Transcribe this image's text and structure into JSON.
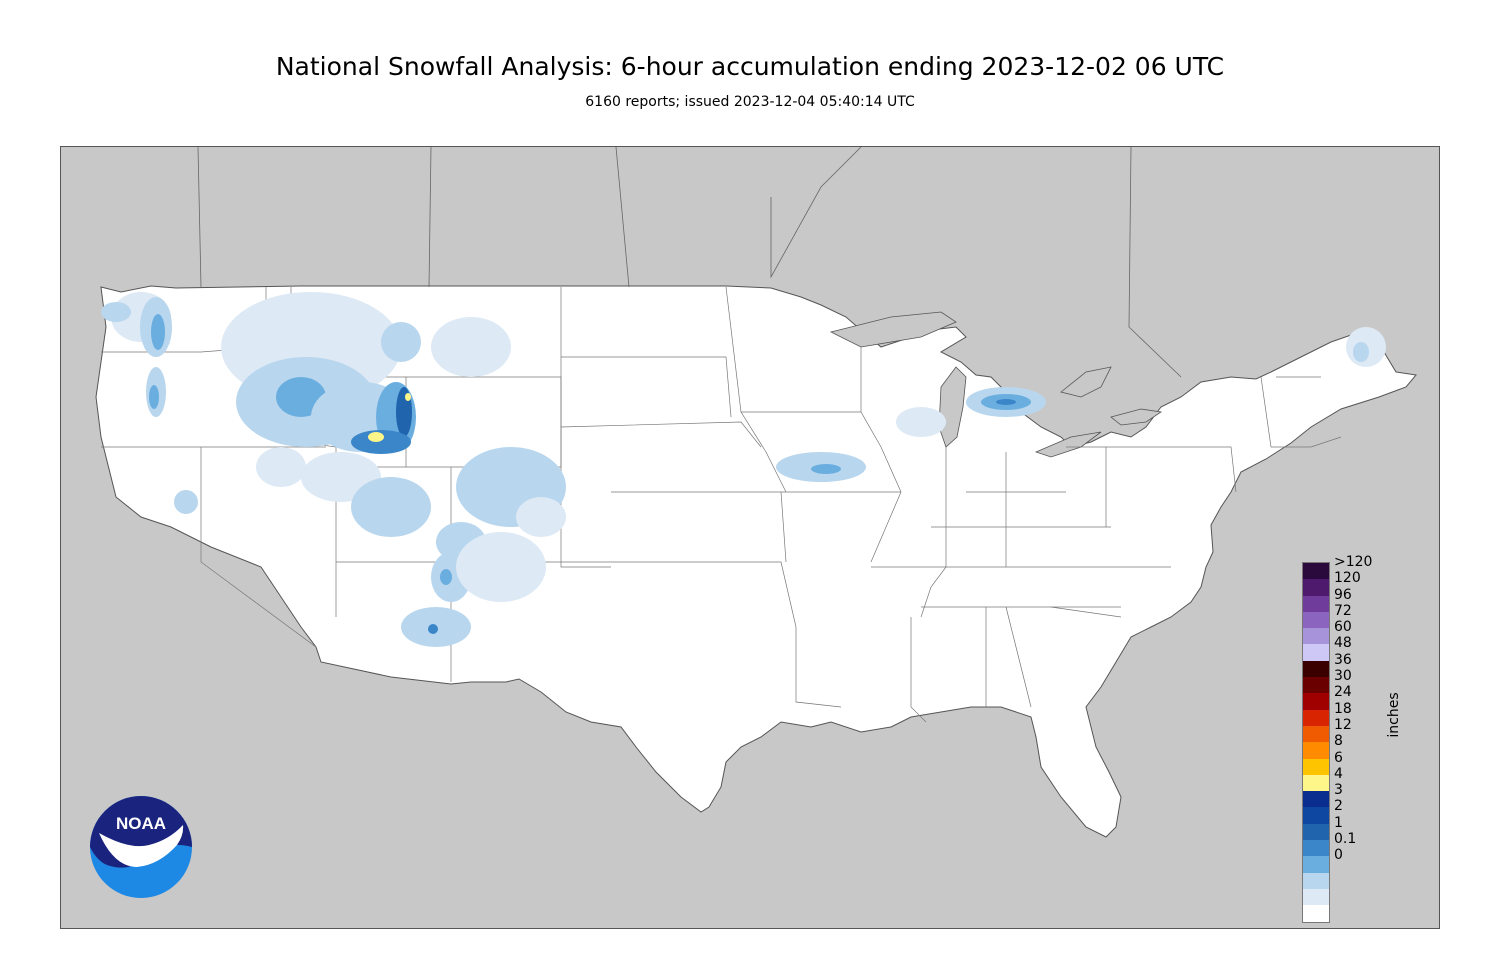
{
  "header": {
    "title": "National Snowfall Analysis: 6-hour accumulation ending 2023-12-02 06 UTC",
    "subtitle": "6160 reports; issued 2023-12-04 05:40:14 UTC"
  },
  "legend": {
    "units": "inches",
    "bins": [
      {
        "label": ">120",
        "color": "#2a0a3c"
      },
      {
        "label": "120",
        "color": "#4e1a6e"
      },
      {
        "label": "96",
        "color": "#6f3c9c"
      },
      {
        "label": "72",
        "color": "#8a64be"
      },
      {
        "label": "60",
        "color": "#a793d9"
      },
      {
        "label": "48",
        "color": "#cdc8f5"
      },
      {
        "label": "36",
        "color": "#3a0000"
      },
      {
        "label": "30",
        "color": "#6a0000"
      },
      {
        "label": "24",
        "color": "#a00000"
      },
      {
        "label": "18",
        "color": "#d82400"
      },
      {
        "label": "12",
        "color": "#f05a00"
      },
      {
        "label": "8",
        "color": "#ff8c00"
      },
      {
        "label": "6",
        "color": "#ffc400"
      },
      {
        "label": "4",
        "color": "#fff68a"
      },
      {
        "label": "3",
        "color": "#0a2e90"
      },
      {
        "label": "2",
        "color": "#0d47a1"
      },
      {
        "label": "1",
        "color": "#1f64ad"
      },
      {
        "label": "0.1",
        "color": "#3b86c9"
      },
      {
        "label": "0",
        "color": "#6aaee0"
      }
    ],
    "extra_swatches": [
      "#b8d6ee",
      "#dde9f5",
      "#ffffff"
    ]
  },
  "logo": {
    "text": "NOAA",
    "colors": {
      "dark": "#1a237e",
      "light": "#1e88e5"
    }
  },
  "map": {
    "land_color": "#ffffff",
    "outside_color": "#c8c8c8",
    "border_color": "#555555"
  }
}
